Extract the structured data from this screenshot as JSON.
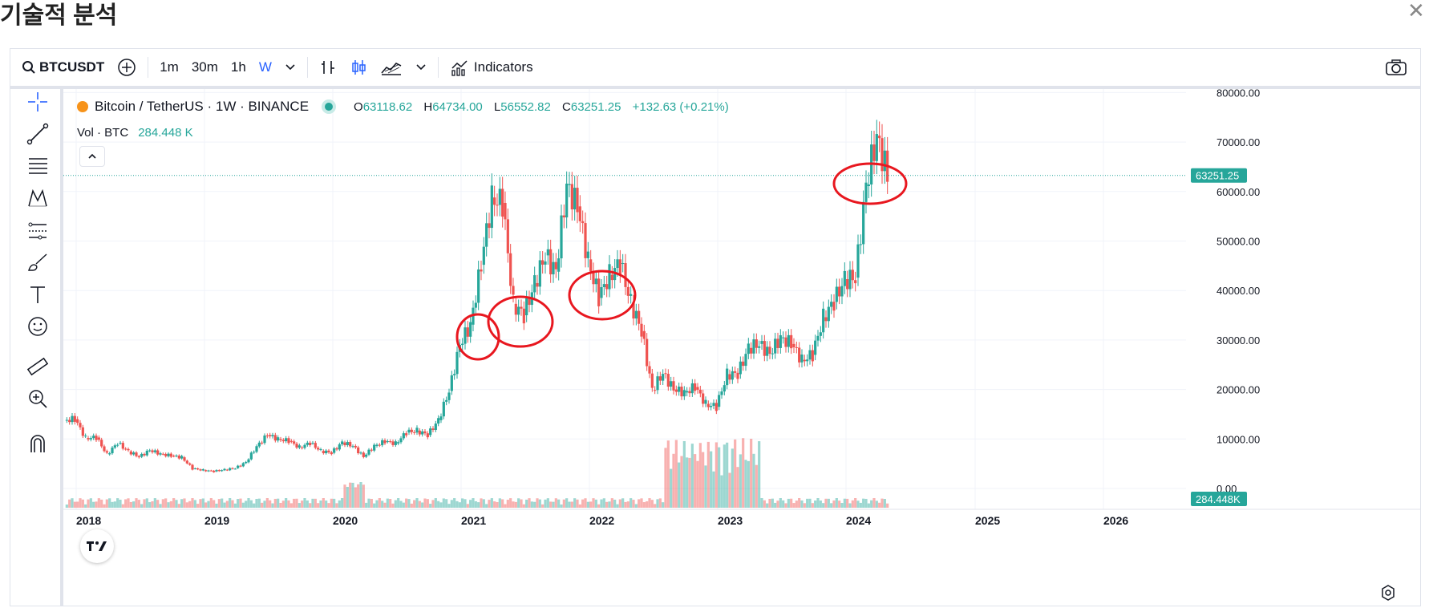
{
  "page": {
    "title": "기술적 분석",
    "close_label": "✕"
  },
  "toolbar": {
    "symbol": "BTCUSDT",
    "intervals": [
      "1m",
      "30m",
      "1h",
      "W"
    ],
    "active_interval": "W",
    "indicators_label": "Indicators",
    "icons": [
      "search-icon",
      "add-symbol-icon",
      "chevron-down-icon",
      "bars-icon",
      "candles-icon",
      "area-icon",
      "chevron-down-icon",
      "indicators-icon",
      "camera-icon"
    ]
  },
  "left_tools": [
    "crosshair-icon",
    "trend-line-icon",
    "fib-icon",
    "pattern-icon",
    "forecast-icon",
    "brush-icon",
    "text-icon",
    "emoji-icon",
    "ruler-icon",
    "zoom-icon",
    "magnet-icon"
  ],
  "legend": {
    "title": "Bitcoin / TetherUS · 1W · BINANCE",
    "o_label": "O",
    "o": "63118.62",
    "h_label": "H",
    "h": "64734.00",
    "l_label": "L",
    "l": "56552.82",
    "c_label": "C",
    "c": "63251.25",
    "change": "+132.63 (+0.21%)",
    "vol_label": "Vol · BTC",
    "vol_value": "284.448 K"
  },
  "colors": {
    "up": "#26a69a",
    "down": "#ef5350",
    "accent": "#2962ff",
    "annotation": "#e8171f"
  },
  "chart_data": {
    "type": "candlestick",
    "symbol": "BTCUSDT",
    "y_ticks": [
      "80000.00",
      "70000.00",
      "60000.00",
      "50000.00",
      "40000.00",
      "30000.00",
      "20000.00",
      "10000.00",
      "0.00"
    ],
    "ylim": [
      0,
      80000
    ],
    "x_ticks": [
      "2018",
      "2019",
      "2020",
      "2021",
      "2022",
      "2023",
      "2024",
      "2025",
      "2026"
    ],
    "last_price": "63251.25",
    "last_volume": "284.448K",
    "series": [
      {
        "name": "BTCUSDT",
        "x": [
          "2017-12",
          "2018-01",
          "2018-02",
          "2018-03",
          "2018-04",
          "2018-05",
          "2018-06",
          "2018-07",
          "2018-08",
          "2018-09",
          "2018-10",
          "2018-11",
          "2018-12",
          "2019-01",
          "2019-02",
          "2019-03",
          "2019-04",
          "2019-05",
          "2019-06",
          "2019-07",
          "2019-08",
          "2019-09",
          "2019-10",
          "2019-11",
          "2019-12",
          "2020-01",
          "2020-02",
          "2020-03",
          "2020-04",
          "2020-05",
          "2020-06",
          "2020-07",
          "2020-08",
          "2020-09",
          "2020-10",
          "2020-11",
          "2020-12",
          "2021-01",
          "2021-02",
          "2021-03",
          "2021-04",
          "2021-05",
          "2021-06",
          "2021-07",
          "2021-08",
          "2021-09",
          "2021-10",
          "2021-11",
          "2021-12",
          "2022-01",
          "2022-02",
          "2022-03",
          "2022-04",
          "2022-05",
          "2022-06",
          "2022-07",
          "2022-08",
          "2022-09",
          "2022-10",
          "2022-11",
          "2022-12",
          "2023-01",
          "2023-02",
          "2023-03",
          "2023-04",
          "2023-05",
          "2023-06",
          "2023-07",
          "2023-08",
          "2023-09",
          "2023-10",
          "2023-11",
          "2023-12",
          "2024-01",
          "2024-02",
          "2024-03",
          "2024-04"
        ],
        "close": [
          14000,
          10200,
          10300,
          6900,
          9200,
          7500,
          6400,
          7700,
          7000,
          6600,
          6300,
          4000,
          3700,
          3450,
          3800,
          4100,
          5300,
          8500,
          10800,
          10000,
          9600,
          8300,
          9200,
          7600,
          7200,
          9300,
          8600,
          6400,
          8600,
          9500,
          9100,
          11300,
          11700,
          10800,
          13800,
          19700,
          29000,
          33100,
          45200,
          58800,
          57700,
          37300,
          35000,
          41500,
          47100,
          43800,
          61300,
          57000,
          46300,
          38500,
          43200,
          45500,
          37600,
          31800,
          19900,
          23300,
          20000,
          19400,
          20500,
          17100,
          16500,
          23100,
          23100,
          28400,
          29200,
          27200,
          30500,
          29200,
          26000,
          27000,
          34600,
          37700,
          42300,
          42600,
          61100,
          71300,
          63251
        ],
        "volume_note": "volume bars shown below price"
      }
    ],
    "annotations": [
      "red hand-drawn circles around 2021-01, 2021-06, 2022-03, 2024-03"
    ]
  }
}
